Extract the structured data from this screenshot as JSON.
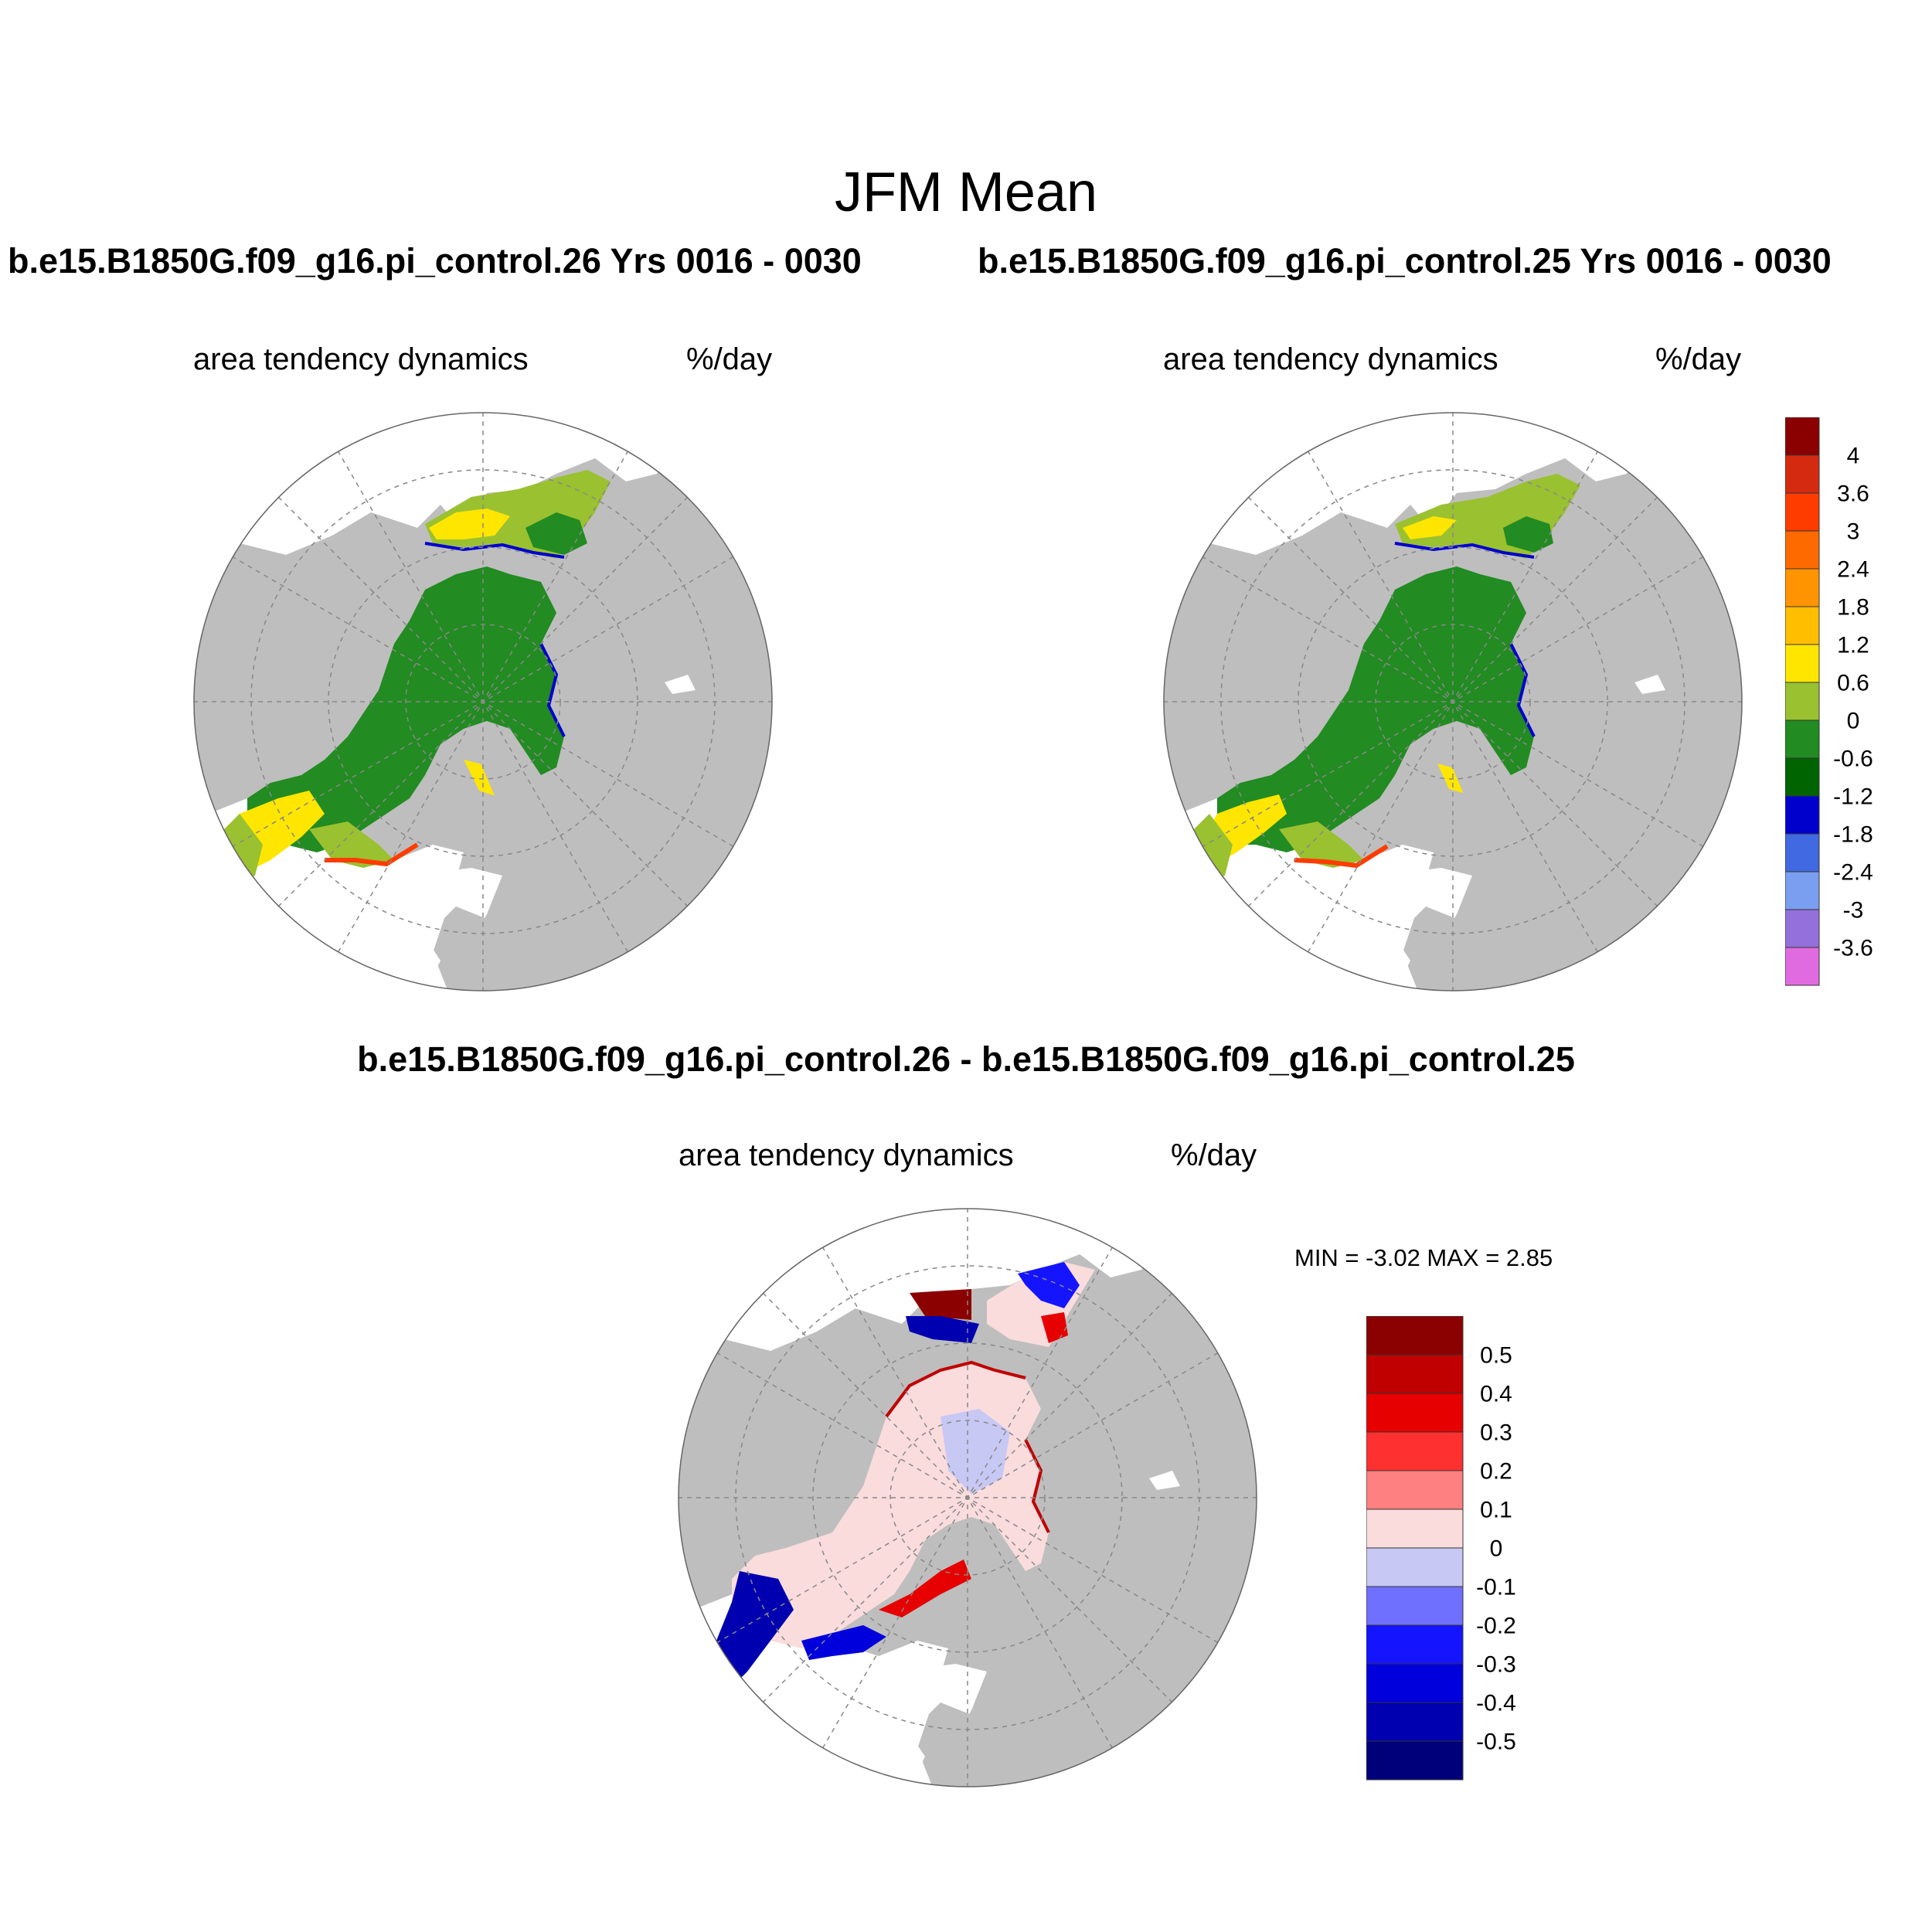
{
  "title": "JFM Mean",
  "panel_left": {
    "case_title": "b.e15.B1850G.f09_g16.pi_control.26  Yrs 0016 - 0030",
    "variable": "area tendency dynamics",
    "units": "%/day"
  },
  "panel_right": {
    "case_title": "b.e15.B1850G.f09_g16.pi_control.25  Yrs 0016 - 0030",
    "variable": "area tendency dynamics",
    "units": "%/day"
  },
  "panel_diff": {
    "case_title": "b.e15.B1850G.f09_g16.pi_control.26 - b.e15.B1850G.f09_g16.pi_control.25",
    "variable": "area tendency dynamics",
    "units": "%/day",
    "minmax_text": "MIN =  -3.02 MAX =   2.85"
  },
  "colorbar_main": {
    "labels": [
      "4",
      "3.6",
      "3",
      "2.4",
      "1.8",
      "1.2",
      "0.6",
      "0",
      "-0.6",
      "-1.2",
      "-1.8",
      "-2.4",
      "-3",
      "-3.6"
    ],
    "colors": [
      "#8b0000",
      "#d42a10",
      "#ff3c00",
      "#ff6a00",
      "#ff9400",
      "#ffbe00",
      "#ffe600",
      "#9ac130",
      "#228b22",
      "#006400",
      "#0000cd",
      "#4169e1",
      "#7b9ff0",
      "#9370db",
      "#e06be0"
    ]
  },
  "colorbar_diff": {
    "labels": [
      "0.5",
      "0.4",
      "0.3",
      "0.2",
      "0.1",
      "0",
      "-0.1",
      "-0.2",
      "-0.3",
      "-0.4",
      "-0.5"
    ],
    "colors": [
      "#8b0000",
      "#c00000",
      "#e60000",
      "#ff3030",
      "#ff8080",
      "#fadcdc",
      "#c8c8f5",
      "#7070ff",
      "#1414ff",
      "#0000dc",
      "#0000b0",
      "#00007a"
    ]
  },
  "map_colors": {
    "land": "#bebebe",
    "ocean": "#ffffff",
    "grid": "#888888",
    "ice_main": "#228b22",
    "ice_edge_blue": "#0000cd"
  }
}
